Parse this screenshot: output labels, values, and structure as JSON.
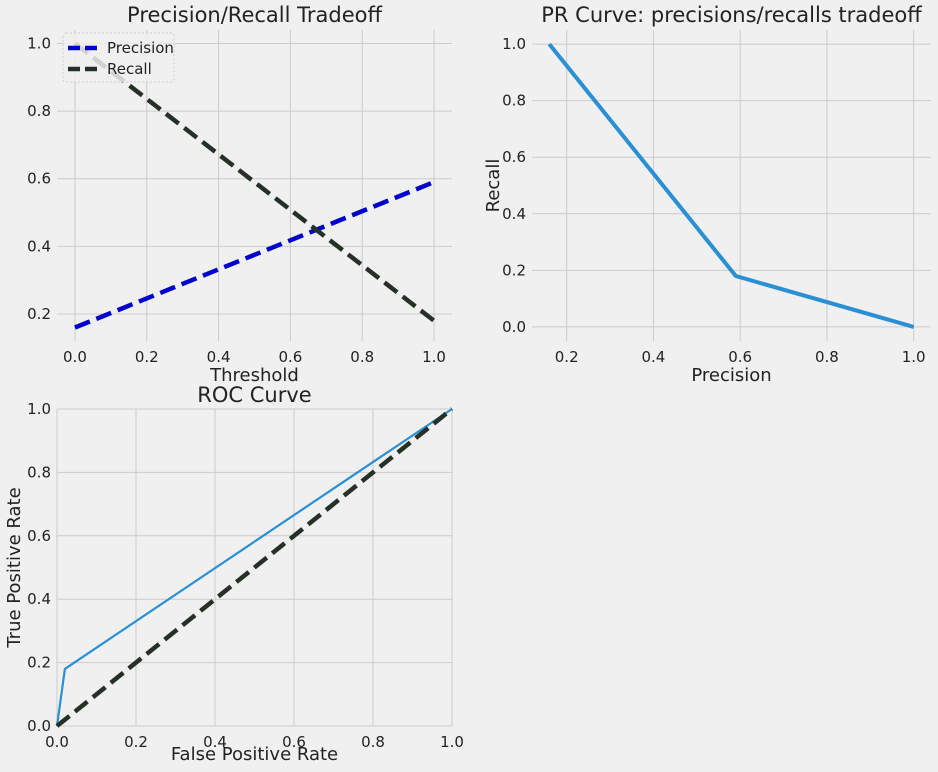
{
  "chart_data": [
    {
      "type": "line",
      "title": "Precision/Recall Tradeoff",
      "xlabel": "Threshold",
      "ylabel": "",
      "xlim": [
        -0.05,
        1.05
      ],
      "ylim": [
        0.12,
        1.04
      ],
      "xticks": [
        "0.0",
        "0.2",
        "0.4",
        "0.6",
        "0.8",
        "1.0"
      ],
      "yticks": [
        "0.2",
        "0.4",
        "0.6",
        "0.8",
        "1.0"
      ],
      "grid": true,
      "legend": "top-left",
      "series": [
        {
          "name": "Precision",
          "color": "#0000cc",
          "style": "dashed",
          "x": [
            0.0,
            1.0
          ],
          "y": [
            0.16,
            0.59
          ]
        },
        {
          "name": "Recall",
          "color": "#263026",
          "style": "dashed",
          "x": [
            0.0,
            1.0
          ],
          "y": [
            1.0,
            0.18
          ]
        }
      ]
    },
    {
      "type": "line",
      "title": "PR Curve: precisions/recalls tradeoff",
      "xlabel": "Precision",
      "ylabel": "Recall",
      "xlim": [
        0.12,
        1.04
      ],
      "ylim": [
        -0.05,
        1.05
      ],
      "xticks": [
        "0.2",
        "0.4",
        "0.6",
        "0.8",
        "1.0"
      ],
      "yticks": [
        "0.0",
        "0.2",
        "0.4",
        "0.6",
        "0.8",
        "1.0"
      ],
      "grid": true,
      "series": [
        {
          "color": "#2b8fd4",
          "style": "solid",
          "x": [
            0.16,
            0.59,
            1.0
          ],
          "y": [
            1.0,
            0.18,
            0.0
          ]
        }
      ]
    },
    {
      "type": "line",
      "title": "ROC Curve",
      "xlabel": "False Positive Rate",
      "ylabel": "True Positive Rate",
      "xlim": [
        0.0,
        1.0
      ],
      "ylim": [
        0.0,
        1.0
      ],
      "xticks": [
        "0.0",
        "0.2",
        "0.4",
        "0.6",
        "0.8",
        "1.0"
      ],
      "yticks": [
        "0.0",
        "0.2",
        "0.4",
        "0.6",
        "0.8",
        "1.0"
      ],
      "grid": true,
      "series": [
        {
          "color": "#2b8fd4",
          "style": "solid",
          "x": [
            0.0,
            0.02,
            1.0
          ],
          "y": [
            0.0,
            0.18,
            1.0
          ]
        },
        {
          "color": "#263026",
          "style": "dashed",
          "x": [
            0.0,
            1.0
          ],
          "y": [
            0.0,
            1.0
          ]
        }
      ]
    }
  ]
}
